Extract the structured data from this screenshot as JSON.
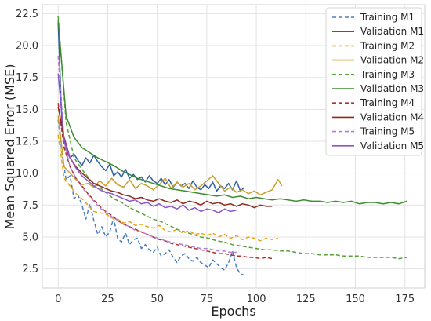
{
  "chart_data": {
    "type": "line",
    "title": "",
    "xlabel": "Epochs",
    "ylabel": "Mean Squared Error (MSE)",
    "xlim": [
      -8,
      185
    ],
    "ylim": [
      1.0,
      23.2
    ],
    "xticks": [
      0,
      25,
      50,
      75,
      100,
      125,
      150,
      175
    ],
    "yticks": [
      2.5,
      5.0,
      7.5,
      10.0,
      12.5,
      15.0,
      17.5,
      20.0,
      22.5
    ],
    "grid": true,
    "legend_position": "top-right",
    "series": [
      {
        "name": "Training M1",
        "color": "#4a7fbf",
        "style": "dashed",
        "x": [
          0,
          2,
          4,
          6,
          8,
          10,
          12,
          14,
          16,
          18,
          20,
          22,
          24,
          26,
          28,
          30,
          32,
          34,
          36,
          38,
          40,
          42,
          44,
          46,
          48,
          50,
          52,
          54,
          56,
          58,
          60,
          62,
          64,
          66,
          68,
          70,
          72,
          74,
          76,
          78,
          80,
          82,
          84,
          86,
          88,
          90,
          92,
          94
        ],
        "y": [
          14.2,
          11.5,
          9.5,
          9.8,
          8.0,
          8.3,
          7.5,
          6.4,
          7.6,
          6.3,
          5.2,
          5.8,
          5.0,
          5.4,
          6.5,
          4.9,
          4.6,
          5.3,
          4.4,
          4.8,
          4.9,
          4.1,
          4.4,
          4.0,
          3.8,
          4.2,
          3.5,
          3.7,
          4.0,
          3.4,
          3.0,
          3.5,
          3.7,
          3.3,
          3.1,
          3.4,
          3.0,
          2.8,
          2.6,
          3.2,
          2.9,
          2.6,
          2.4,
          3.0,
          3.9,
          2.6,
          2.1,
          2.0
        ]
      },
      {
        "name": "Validation M1",
        "color": "#2e5fa3",
        "style": "solid",
        "x": [
          0,
          2,
          4,
          6,
          8,
          10,
          12,
          14,
          16,
          18,
          20,
          22,
          24,
          26,
          28,
          30,
          32,
          34,
          36,
          38,
          40,
          42,
          44,
          46,
          48,
          50,
          52,
          54,
          56,
          58,
          60,
          62,
          64,
          66,
          68,
          70,
          72,
          74,
          76,
          78,
          80,
          82,
          84,
          86,
          88,
          90,
          92,
          94
        ],
        "y": [
          21.8,
          13.5,
          11.8,
          11.2,
          11.5,
          11.0,
          10.6,
          11.2,
          10.8,
          11.4,
          10.9,
          10.5,
          10.2,
          10.7,
          9.8,
          10.1,
          9.7,
          10.3,
          9.6,
          9.9,
          9.5,
          9.7,
          9.3,
          9.8,
          9.4,
          9.2,
          9.6,
          9.1,
          9.5,
          8.9,
          9.3,
          9.0,
          9.2,
          8.8,
          9.4,
          8.9,
          8.7,
          9.1,
          8.8,
          9.3,
          8.6,
          9.0,
          8.8,
          9.2,
          8.7,
          9.4,
          8.6,
          8.9
        ]
      },
      {
        "name": "Training M2",
        "color": "#e8a317",
        "style": "dashed",
        "x": [
          0,
          3,
          6,
          9,
          12,
          15,
          18,
          21,
          24,
          27,
          30,
          33,
          36,
          39,
          42,
          45,
          48,
          51,
          54,
          57,
          60,
          63,
          66,
          69,
          72,
          75,
          78,
          81,
          84,
          87,
          90,
          93,
          96,
          99,
          102,
          105,
          108,
          111
        ],
        "y": [
          13.0,
          9.6,
          9.0,
          8.4,
          8.0,
          7.5,
          7.0,
          6.9,
          6.8,
          6.5,
          6.4,
          6.1,
          6.2,
          5.9,
          6.0,
          5.8,
          5.7,
          5.9,
          5.5,
          5.4,
          5.6,
          5.3,
          5.5,
          5.2,
          5.3,
          5.1,
          5.3,
          5.0,
          5.2,
          4.9,
          5.1,
          4.8,
          5.0,
          4.9,
          4.7,
          4.9,
          4.8,
          4.9
        ]
      },
      {
        "name": "Validation M2",
        "color": "#c8a02a",
        "style": "solid",
        "x": [
          0,
          3,
          6,
          9,
          12,
          15,
          18,
          21,
          24,
          27,
          30,
          33,
          36,
          39,
          42,
          45,
          48,
          51,
          54,
          57,
          60,
          63,
          66,
          69,
          72,
          75,
          78,
          81,
          84,
          87,
          90,
          93,
          96,
          99,
          102,
          105,
          108,
          111,
          113
        ],
        "y": [
          14.5,
          10.5,
          10.0,
          9.5,
          9.1,
          9.2,
          8.9,
          9.4,
          9.0,
          9.6,
          9.1,
          8.9,
          9.5,
          8.8,
          9.2,
          9.0,
          8.7,
          9.1,
          9.6,
          8.8,
          9.3,
          8.9,
          9.2,
          8.7,
          9.0,
          9.4,
          9.8,
          9.2,
          8.6,
          8.9,
          8.5,
          8.7,
          8.4,
          8.6,
          8.3,
          8.5,
          8.7,
          9.5,
          9.0
        ]
      },
      {
        "name": "Training M3",
        "color": "#5aa03a",
        "style": "dashed",
        "x": [
          0,
          4,
          8,
          12,
          16,
          20,
          24,
          28,
          32,
          36,
          40,
          44,
          48,
          52,
          56,
          60,
          64,
          68,
          72,
          76,
          80,
          84,
          88,
          92,
          96,
          100,
          104,
          108,
          112,
          116,
          120,
          124,
          128,
          132,
          136,
          140,
          144,
          148,
          152,
          156,
          160,
          164,
          168,
          172,
          176
        ],
        "y": [
          22.3,
          14.0,
          11.2,
          10.3,
          9.5,
          9.0,
          8.5,
          8.0,
          7.7,
          7.3,
          7.0,
          6.7,
          6.4,
          6.2,
          5.9,
          5.6,
          5.4,
          5.2,
          5.0,
          4.9,
          4.7,
          4.6,
          4.4,
          4.3,
          4.2,
          4.1,
          4.0,
          4.0,
          3.9,
          3.9,
          3.8,
          3.7,
          3.7,
          3.6,
          3.6,
          3.6,
          3.5,
          3.5,
          3.5,
          3.4,
          3.4,
          3.4,
          3.4,
          3.3,
          3.4
        ]
      },
      {
        "name": "Validation M3",
        "color": "#3d8b2e",
        "style": "solid",
        "x": [
          0,
          4,
          8,
          12,
          16,
          20,
          24,
          28,
          32,
          36,
          40,
          44,
          48,
          52,
          56,
          60,
          64,
          68,
          72,
          76,
          80,
          84,
          88,
          92,
          96,
          100,
          104,
          108,
          112,
          116,
          120,
          124,
          128,
          132,
          136,
          140,
          144,
          148,
          152,
          156,
          160,
          164,
          168,
          172,
          176
        ],
        "y": [
          22.0,
          14.5,
          12.8,
          12.0,
          11.6,
          11.2,
          10.9,
          10.6,
          10.2,
          9.9,
          9.6,
          9.4,
          9.2,
          9.0,
          8.8,
          8.7,
          8.6,
          8.5,
          8.4,
          8.3,
          8.2,
          8.3,
          8.1,
          8.2,
          8.0,
          8.1,
          8.0,
          7.9,
          8.0,
          7.9,
          7.8,
          7.9,
          7.8,
          7.8,
          7.7,
          7.8,
          7.7,
          7.8,
          7.6,
          7.7,
          7.7,
          7.6,
          7.7,
          7.6,
          7.8
        ]
      },
      {
        "name": "Training M4",
        "color": "#b0302a",
        "style": "dashed",
        "x": [
          0,
          3,
          6,
          9,
          12,
          15,
          18,
          21,
          24,
          27,
          30,
          33,
          36,
          39,
          42,
          45,
          48,
          51,
          54,
          57,
          60,
          63,
          66,
          69,
          72,
          75,
          78,
          81,
          84,
          87,
          90,
          93,
          96,
          99,
          102,
          105,
          108
        ],
        "y": [
          15.5,
          12.0,
          10.5,
          9.6,
          9.0,
          8.4,
          7.9,
          7.4,
          7.0,
          6.7,
          6.3,
          6.0,
          5.8,
          5.6,
          5.4,
          5.2,
          5.0,
          4.8,
          4.7,
          4.5,
          4.4,
          4.3,
          4.2,
          4.1,
          4.0,
          3.9,
          3.8,
          3.7,
          3.7,
          3.6,
          3.5,
          3.5,
          3.4,
          3.4,
          3.3,
          3.4,
          3.3
        ]
      },
      {
        "name": "Validation M4",
        "color": "#8c2a1c",
        "style": "solid",
        "x": [
          0,
          3,
          6,
          9,
          12,
          15,
          18,
          21,
          24,
          27,
          30,
          33,
          36,
          39,
          42,
          45,
          48,
          51,
          54,
          57,
          60,
          63,
          66,
          69,
          72,
          75,
          78,
          81,
          84,
          87,
          90,
          93,
          96,
          99,
          102,
          105,
          108
        ],
        "y": [
          15.2,
          12.8,
          11.2,
          10.5,
          10.0,
          9.6,
          9.2,
          9.0,
          8.8,
          8.6,
          8.5,
          8.3,
          8.2,
          8.0,
          8.1,
          7.9,
          7.8,
          8.0,
          7.8,
          7.7,
          7.9,
          7.6,
          7.8,
          7.7,
          7.5,
          7.8,
          7.6,
          7.7,
          7.5,
          7.6,
          7.4,
          7.6,
          7.5,
          7.3,
          7.5,
          7.4,
          7.4
        ]
      },
      {
        "name": "Training M5",
        "color": "#b27fd6",
        "style": "dashed",
        "x": [
          0,
          3,
          6,
          9,
          12,
          15,
          18,
          21,
          24,
          27,
          30,
          33,
          36,
          39,
          42,
          45,
          48,
          51,
          54,
          57,
          60,
          63,
          66,
          69,
          72,
          75,
          78,
          81,
          84,
          87,
          90
        ],
        "y": [
          19.2,
          12.5,
          10.5,
          9.6,
          8.9,
          8.3,
          7.8,
          7.3,
          6.9,
          6.6,
          6.3,
          6.0,
          5.8,
          5.5,
          5.4,
          5.2,
          5.0,
          4.9,
          4.7,
          4.6,
          4.5,
          4.4,
          4.3,
          4.2,
          4.1,
          4.1,
          4.0,
          3.9,
          3.9,
          3.8,
          3.8
        ]
      },
      {
        "name": "Validation M5",
        "color": "#8a55c9",
        "style": "solid",
        "x": [
          0,
          3,
          6,
          9,
          12,
          15,
          18,
          21,
          24,
          27,
          30,
          33,
          36,
          39,
          42,
          45,
          48,
          51,
          54,
          57,
          60,
          63,
          66,
          69,
          72,
          75,
          78,
          81,
          84,
          87,
          90
        ],
        "y": [
          17.8,
          12.6,
          11.2,
          10.4,
          9.8,
          9.4,
          9.0,
          8.7,
          8.5,
          8.4,
          8.2,
          8.0,
          7.8,
          7.9,
          7.6,
          7.7,
          7.4,
          7.6,
          7.3,
          7.4,
          7.2,
          7.5,
          7.1,
          7.3,
          7.0,
          7.2,
          7.1,
          6.9,
          7.2,
          7.0,
          7.1
        ]
      }
    ]
  }
}
